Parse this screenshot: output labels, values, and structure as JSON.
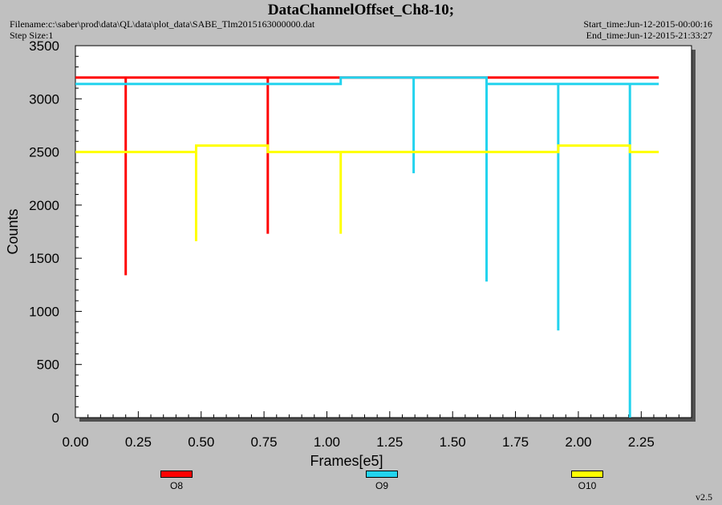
{
  "header": {
    "title": "DataChannelOffset_Ch8-10;",
    "filename": "Filename:c:\\saber\\prod\\data\\QL\\data\\plot_data\\SABE_Tlm2015163000000.dat",
    "step_size": "Step Size:1",
    "start_time": "Start_time:Jun-12-2015-00:00:16",
    "end_time": "End_time:Jun-12-2015-21:33:27"
  },
  "footer": {
    "version": "v2.5"
  },
  "colors": {
    "background": "#c0c0c0",
    "plot_bg": "#ffffff",
    "O8": "#ff0000",
    "O9": "#22d3ee",
    "O10": "#ffff00"
  },
  "chart_data": {
    "type": "line",
    "title": "DataChannelOffset_Ch8-10;",
    "xlabel": "Frames[e5]",
    "ylabel": "Counts",
    "xlim": [
      0,
      2.45
    ],
    "ylim": [
      0,
      3500
    ],
    "xticks": [
      "0.00",
      "0.25",
      "0.50",
      "0.75",
      "1.00",
      "1.25",
      "1.50",
      "1.75",
      "2.00",
      "2.25"
    ],
    "yticks": [
      "0",
      "500",
      "1000",
      "1500",
      "2000",
      "2500",
      "3000",
      "3500"
    ],
    "grid": false,
    "legend_position": "bottom",
    "series": [
      {
        "name": "O8",
        "color": "#ff0000",
        "baseline": [
          [
            0,
            3200
          ],
          [
            2.32,
            3200
          ]
        ],
        "spikes": [
          [
            0.2,
            1340
          ],
          [
            0.765,
            1730
          ]
        ]
      },
      {
        "name": "O9",
        "color": "#22d3ee",
        "baseline": [
          [
            0,
            3140
          ],
          [
            1.055,
            3140
          ],
          [
            1.055,
            3200
          ],
          [
            1.635,
            3200
          ],
          [
            1.635,
            3140
          ],
          [
            2.32,
            3140
          ]
        ],
        "spikes": [
          [
            1.345,
            2300
          ],
          [
            1.635,
            1280
          ],
          [
            1.92,
            820
          ],
          [
            2.205,
            0
          ]
        ]
      },
      {
        "name": "O10",
        "color": "#ffff00",
        "baseline": [
          [
            0,
            2500
          ],
          [
            0.48,
            2500
          ],
          [
            0.48,
            2560
          ],
          [
            0.765,
            2560
          ],
          [
            0.765,
            2500
          ],
          [
            1.92,
            2500
          ],
          [
            1.92,
            2560
          ],
          [
            2.205,
            2560
          ],
          [
            2.205,
            2500
          ],
          [
            2.32,
            2500
          ]
        ],
        "spikes": [
          [
            0.48,
            1660
          ],
          [
            1.055,
            1730
          ]
        ]
      }
    ]
  }
}
